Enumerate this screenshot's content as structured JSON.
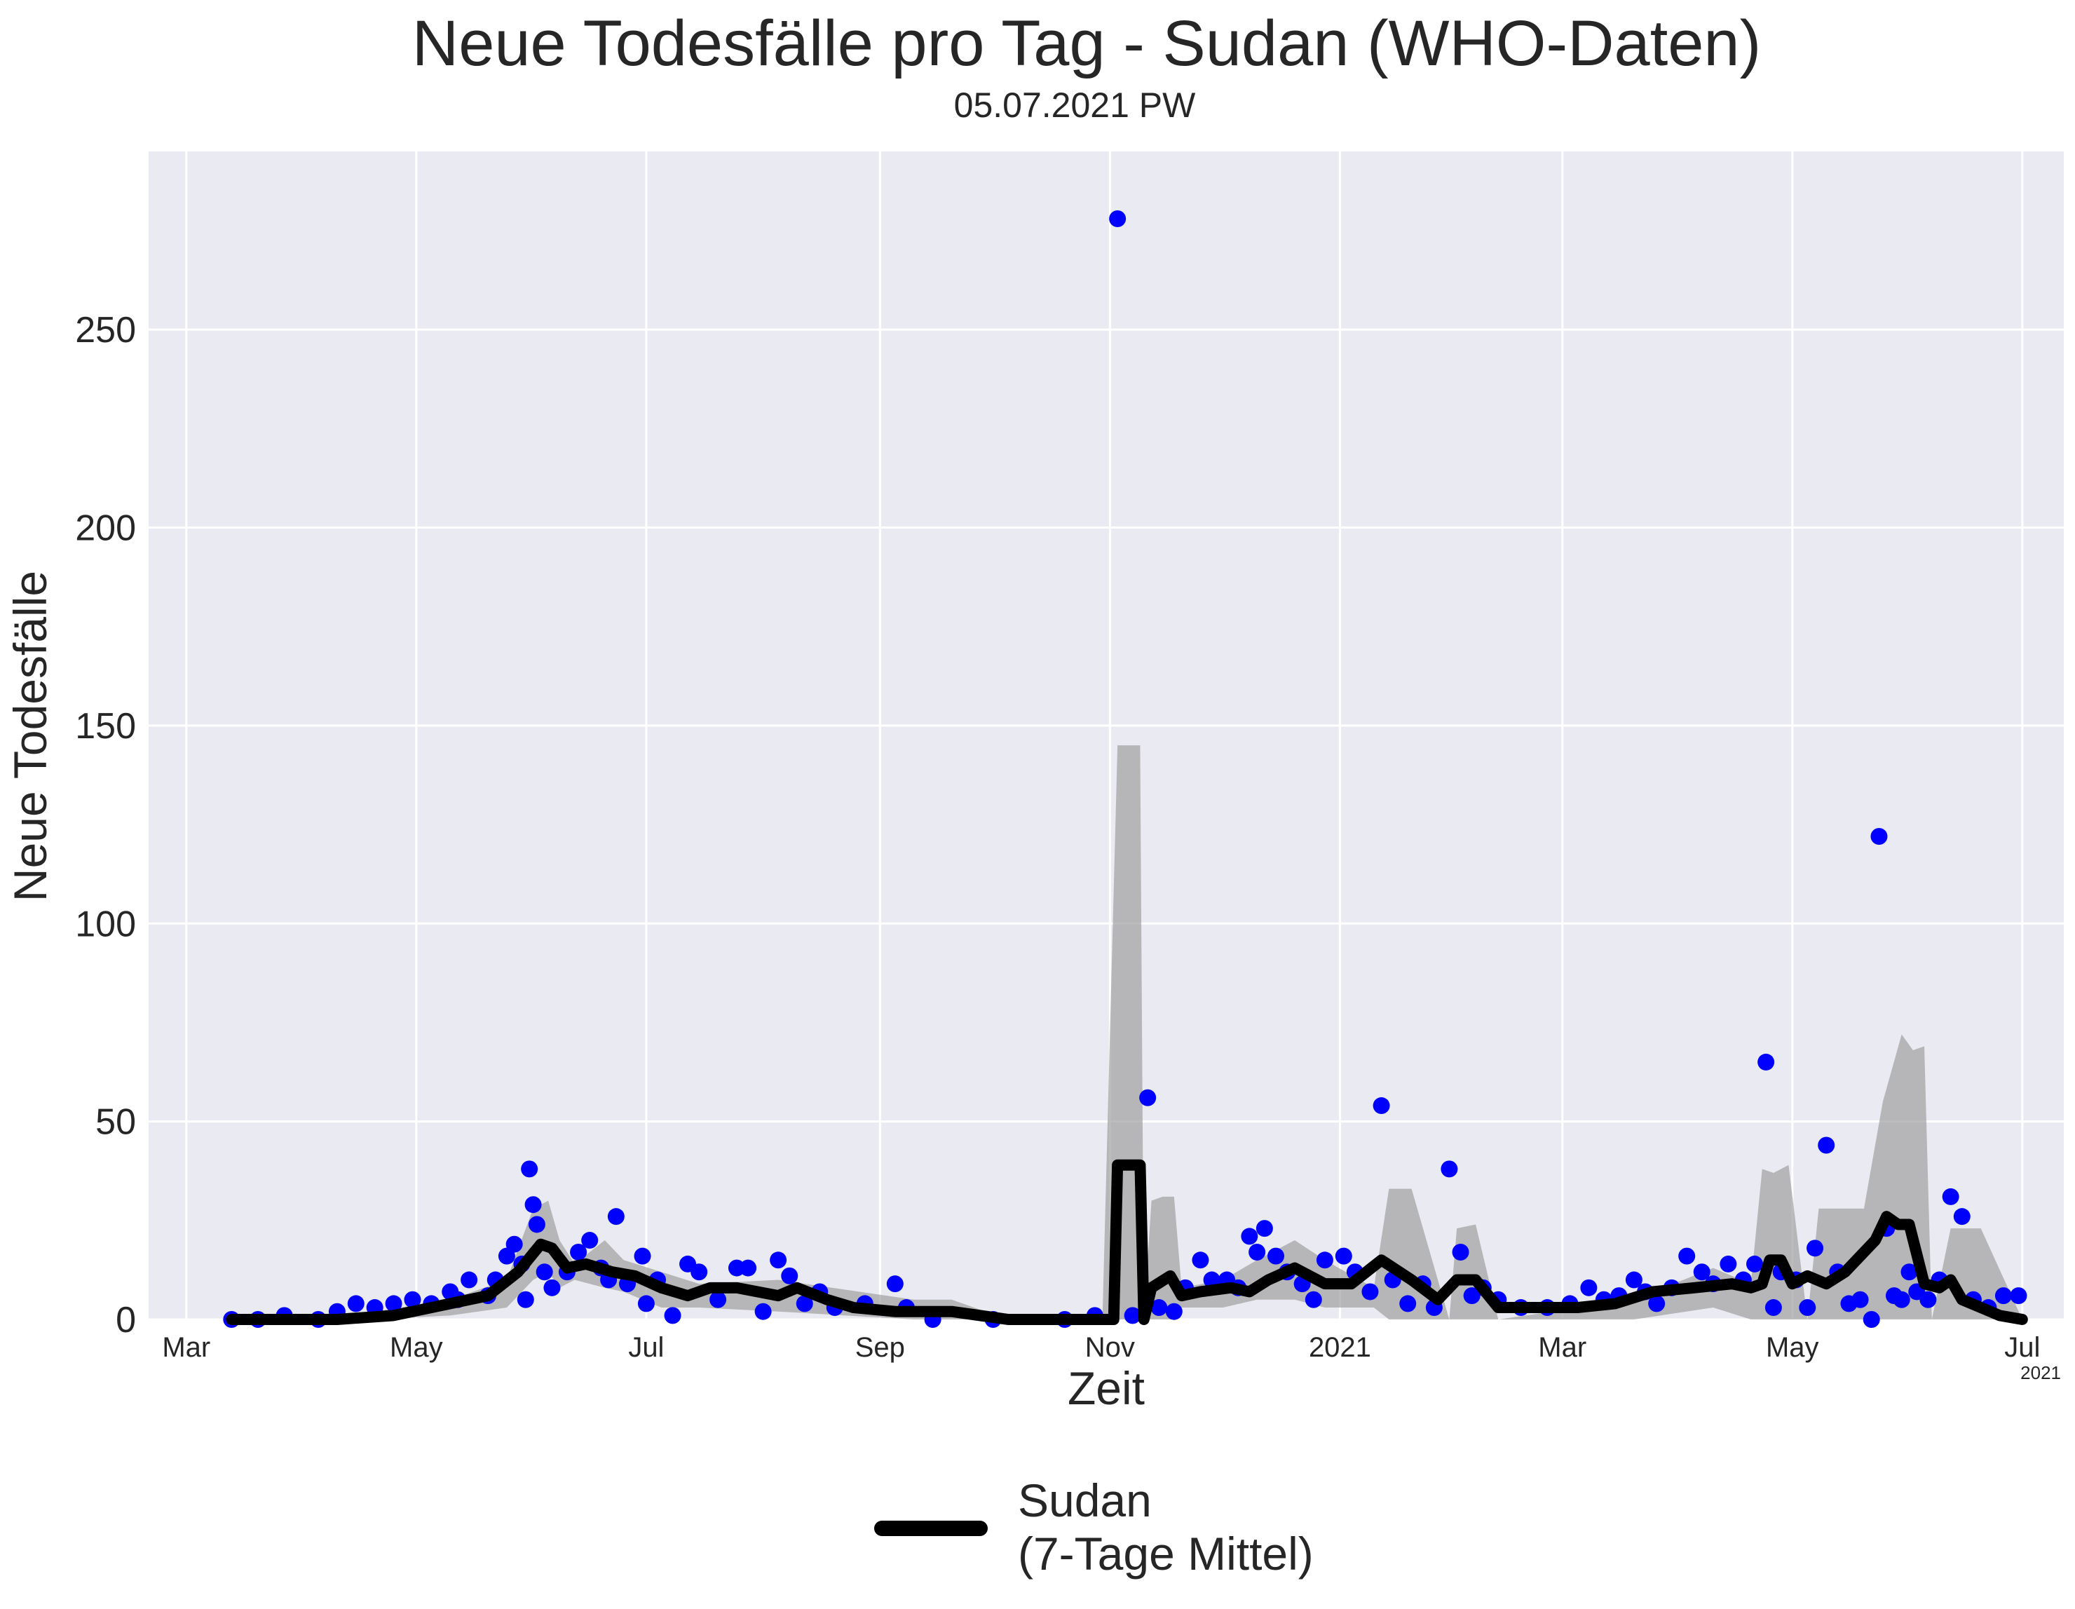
{
  "chart_data": {
    "type": "line",
    "title": "Neue Todesfälle pro Tag - Sudan (WHO-Daten)",
    "subtitle": "05.07.2021 PW",
    "xlabel": "Zeit",
    "ylabel": "Neue Todesfälle",
    "x_offset_label": "2021",
    "xlim": [
      "2020-02-20",
      "2021-07-12"
    ],
    "ylim": [
      0,
      295
    ],
    "yticks": [
      0,
      50,
      100,
      150,
      200,
      250
    ],
    "xticks": [
      {
        "date": "2020-03-01",
        "label": "Mar"
      },
      {
        "date": "2020-05-01",
        "label": "May"
      },
      {
        "date": "2020-07-01",
        "label": "Jul"
      },
      {
        "date": "2020-09-01",
        "label": "Sep"
      },
      {
        "date": "2020-11-01",
        "label": "Nov"
      },
      {
        "date": "2021-01-01",
        "label": "2021"
      },
      {
        "date": "2021-03-01",
        "label": "Mar"
      },
      {
        "date": "2021-05-01",
        "label": "May"
      },
      {
        "date": "2021-07-01",
        "label": "Jul"
      }
    ],
    "grid": true,
    "legend_position": "bottom-center",
    "colors": {
      "background": "#eaeaf2",
      "points": "#0000ff",
      "line": "#000000",
      "band": "#a0a0a0",
      "grid": "#ffffff"
    },
    "series": [
      {
        "name": "Sudan\n(7-Tage Mittel)",
        "kind": "line",
        "x": [
          "2020-03-13",
          "2020-03-25",
          "2020-04-10",
          "2020-04-25",
          "2020-05-05",
          "2020-05-20",
          "2020-05-28",
          "2020-06-03",
          "2020-06-06",
          "2020-06-10",
          "2020-06-15",
          "2020-06-22",
          "2020-06-28",
          "2020-07-05",
          "2020-07-12",
          "2020-07-18",
          "2020-07-25",
          "2020-08-05",
          "2020-08-10",
          "2020-08-18",
          "2020-08-25",
          "2020-09-05",
          "2020-09-15",
          "2020-09-20",
          "2020-10-05",
          "2020-10-20",
          "2020-11-02",
          "2020-11-03",
          "2020-11-09",
          "2020-11-10",
          "2020-11-12",
          "2020-11-17",
          "2020-11-20",
          "2020-11-25",
          "2020-12-03",
          "2020-12-08",
          "2020-12-13",
          "2020-12-20",
          "2020-12-28",
          "2021-01-04",
          "2021-01-12",
          "2021-01-20",
          "2021-01-27",
          "2021-02-01",
          "2021-02-06",
          "2021-02-12",
          "2021-02-20",
          "2021-03-05",
          "2021-03-15",
          "2021-03-25",
          "2021-04-05",
          "2021-04-15",
          "2021-04-20",
          "2021-04-23",
          "2021-04-25",
          "2021-04-28",
          "2021-05-01",
          "2021-05-05",
          "2021-05-10",
          "2021-05-15",
          "2021-05-20",
          "2021-05-23",
          "2021-05-26",
          "2021-05-29",
          "2021-06-01",
          "2021-06-05",
          "2021-06-09",
          "2021-06-12",
          "2021-06-15",
          "2021-06-20",
          "2021-06-25",
          "2021-07-01"
        ],
        "y": [
          0,
          0,
          0,
          1,
          3,
          6,
          12,
          19,
          18,
          13,
          14,
          12,
          11,
          8,
          6,
          8,
          8,
          6,
          8,
          5,
          3,
          2,
          2,
          2,
          0,
          0,
          0,
          39,
          39,
          0,
          8,
          11,
          6,
          7,
          8,
          7,
          10,
          13,
          9,
          9,
          15,
          10,
          5,
          10,
          10,
          3,
          3,
          3,
          4,
          7,
          8,
          9,
          8,
          9,
          15,
          15,
          9,
          11,
          9,
          12,
          17,
          20,
          26,
          24,
          24,
          9,
          8,
          10,
          5,
          3,
          1,
          0
        ]
      },
      {
        "name": "",
        "kind": "band",
        "x": [
          "2020-03-13",
          "2020-04-20",
          "2020-05-10",
          "2020-05-25",
          "2020-06-01",
          "2020-06-05",
          "2020-06-08",
          "2020-06-12",
          "2020-06-20",
          "2020-06-25",
          "2020-07-05",
          "2020-07-15",
          "2020-08-05",
          "2020-09-10",
          "2020-09-20",
          "2020-10-05",
          "2020-10-30",
          "2020-11-03",
          "2020-11-09",
          "2020-11-10",
          "2020-11-12",
          "2020-11-15",
          "2020-11-18",
          "2020-11-20",
          "2020-12-01",
          "2020-12-10",
          "2020-12-20",
          "2020-12-28",
          "2021-01-10",
          "2021-01-14",
          "2021-01-20",
          "2021-01-30",
          "2021-02-01",
          "2021-02-06",
          "2021-02-12",
          "2021-03-20",
          "2021-04-10",
          "2021-04-20",
          "2021-04-23",
          "2021-04-26",
          "2021-04-30",
          "2021-05-05",
          "2021-05-08",
          "2021-05-20",
          "2021-05-25",
          "2021-05-30",
          "2021-06-02",
          "2021-06-05",
          "2021-06-07",
          "2021-06-12",
          "2021-06-20",
          "2021-07-01"
        ],
        "upper": [
          0,
          2,
          5,
          10,
          28,
          30,
          20,
          14,
          20,
          15,
          12,
          9,
          10,
          5,
          5,
          0,
          0,
          145,
          145,
          0,
          30,
          31,
          31,
          8,
          10,
          15,
          20,
          15,
          8,
          33,
          33,
          0,
          23,
          24,
          0,
          5,
          13,
          9,
          38,
          37,
          39,
          0,
          28,
          28,
          55,
          72,
          68,
          69,
          0,
          23,
          23,
          0
        ],
        "lower": [
          0,
          0,
          1,
          3,
          10,
          12,
          8,
          10,
          8,
          7,
          3,
          3,
          2,
          0,
          0,
          0,
          0,
          0,
          0,
          0,
          0,
          0,
          0,
          3,
          3,
          5,
          5,
          3,
          3,
          0,
          0,
          0,
          0,
          0,
          0,
          0,
          3,
          0,
          0,
          0,
          0,
          0,
          0,
          0,
          0,
          0,
          0,
          0,
          0,
          0,
          0,
          0
        ]
      },
      {
        "name": "",
        "kind": "scatter",
        "x": [
          "2020-03-13",
          "2020-03-20",
          "2020-03-27",
          "2020-04-05",
          "2020-04-10",
          "2020-04-15",
          "2020-04-20",
          "2020-04-25",
          "2020-04-30",
          "2020-05-05",
          "2020-05-10",
          "2020-05-12",
          "2020-05-15",
          "2020-05-20",
          "2020-05-22",
          "2020-05-25",
          "2020-05-27",
          "2020-05-29",
          "2020-05-30",
          "2020-05-31",
          "2020-06-01",
          "2020-06-02",
          "2020-06-04",
          "2020-06-06",
          "2020-06-10",
          "2020-06-13",
          "2020-06-16",
          "2020-06-19",
          "2020-06-21",
          "2020-06-23",
          "2020-06-26",
          "2020-06-30",
          "2020-07-01",
          "2020-07-04",
          "2020-07-08",
          "2020-07-12",
          "2020-07-15",
          "2020-07-20",
          "2020-07-25",
          "2020-07-28",
          "2020-08-01",
          "2020-08-05",
          "2020-08-08",
          "2020-08-12",
          "2020-08-16",
          "2020-08-20",
          "2020-08-28",
          "2020-09-05",
          "2020-09-08",
          "2020-09-15",
          "2020-10-01",
          "2020-10-20",
          "2020-10-28",
          "2020-11-03",
          "2020-11-07",
          "2020-11-11",
          "2020-11-14",
          "2020-11-18",
          "2020-11-21",
          "2020-11-25",
          "2020-11-28",
          "2020-12-02",
          "2020-12-05",
          "2020-12-08",
          "2020-12-10",
          "2020-12-12",
          "2020-12-15",
          "2020-12-18",
          "2020-12-22",
          "2020-12-25",
          "2020-12-28",
          "2021-01-02",
          "2021-01-05",
          "2021-01-09",
          "2021-01-12",
          "2021-01-15",
          "2021-01-19",
          "2021-01-23",
          "2021-01-26",
          "2021-01-30",
          "2021-02-02",
          "2021-02-05",
          "2021-02-08",
          "2021-02-12",
          "2021-02-18",
          "2021-02-25",
          "2021-03-03",
          "2021-03-08",
          "2021-03-12",
          "2021-03-16",
          "2021-03-20",
          "2021-03-23",
          "2021-03-26",
          "2021-03-30",
          "2021-04-03",
          "2021-04-07",
          "2021-04-10",
          "2021-04-14",
          "2021-04-18",
          "2021-04-21",
          "2021-04-24",
          "2021-04-26",
          "2021-04-28",
          "2021-05-02",
          "2021-05-05",
          "2021-05-07",
          "2021-05-10",
          "2021-05-13",
          "2021-05-16",
          "2021-05-19",
          "2021-05-22",
          "2021-05-24",
          "2021-05-26",
          "2021-05-28",
          "2021-05-30",
          "2021-06-01",
          "2021-06-03",
          "2021-06-06",
          "2021-06-09",
          "2021-06-12",
          "2021-06-15",
          "2021-06-18",
          "2021-06-22",
          "2021-06-26",
          "2021-06-30"
        ],
        "y": [
          0,
          0,
          1,
          0,
          2,
          4,
          3,
          4,
          5,
          4,
          7,
          5,
          10,
          6,
          10,
          16,
          19,
          14,
          5,
          38,
          29,
          24,
          12,
          8,
          12,
          17,
          20,
          13,
          10,
          26,
          9,
          16,
          4,
          10,
          1,
          14,
          12,
          5,
          13,
          13,
          2,
          15,
          11,
          4,
          7,
          3,
          4,
          9,
          3,
          0,
          0,
          0,
          1,
          278,
          1,
          56,
          3,
          2,
          8,
          15,
          10,
          10,
          8,
          21,
          17,
          23,
          16,
          12,
          9,
          5,
          15,
          16,
          12,
          7,
          54,
          10,
          4,
          9,
          3,
          38,
          17,
          6,
          8,
          5,
          3,
          3,
          4,
          8,
          5,
          6,
          10,
          7,
          4,
          8,
          16,
          12,
          9,
          14,
          10,
          14,
          65,
          3,
          12,
          10,
          3,
          18,
          44,
          12,
          4,
          5,
          0,
          122,
          23,
          6,
          5,
          12,
          7,
          5,
          10,
          31,
          26,
          5,
          3,
          6,
          6
        ]
      }
    ]
  }
}
